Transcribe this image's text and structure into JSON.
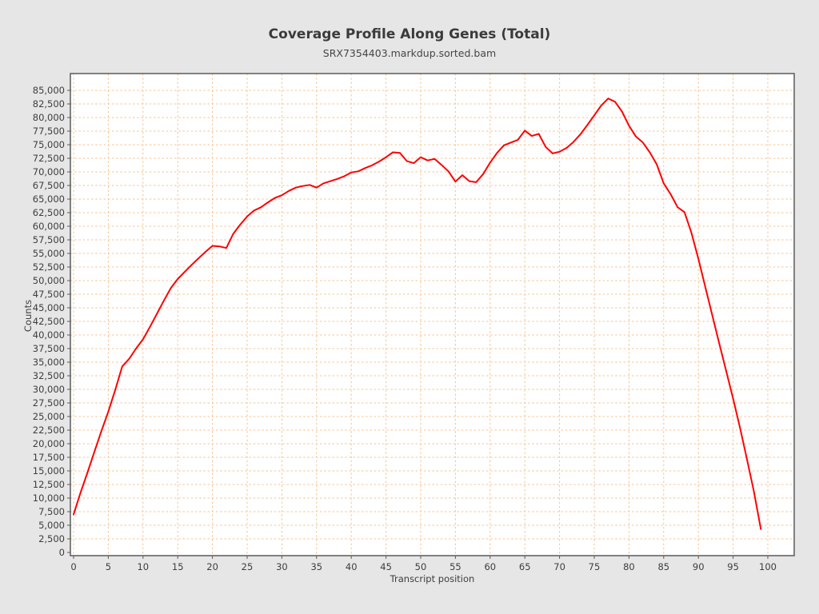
{
  "chart_data": {
    "type": "line",
    "title": "Coverage Profile Along Genes (Total)",
    "subtitle": "SRX7354403.markdup.sorted.bam",
    "xlabel": "Transcript position",
    "ylabel": "Counts",
    "xlim": [
      0,
      100
    ],
    "ylim": [
      0,
      85000
    ],
    "x_tick_step": 5,
    "y_tick_step": 2500,
    "grid": "dashed",
    "legend_position": "none",
    "style": {
      "page_bg": "#e6e6e6",
      "plot_bg": "#ffffff",
      "grid_color": "#f6c493",
      "line_color": "#ff0000",
      "border_color": "#5a5a5a",
      "text_color": "#3d3d3d"
    },
    "series": [
      {
        "name": "SRX7354403.markdup.sorted.bam",
        "x": [
          0,
          1,
          2,
          3,
          4,
          5,
          6,
          7,
          8,
          9,
          10,
          11,
          12,
          13,
          14,
          15,
          16,
          17,
          18,
          19,
          20,
          21,
          22,
          23,
          24,
          25,
          26,
          27,
          28,
          29,
          30,
          31,
          32,
          33,
          34,
          35,
          36,
          37,
          38,
          39,
          40,
          41,
          42,
          43,
          44,
          45,
          46,
          47,
          48,
          49,
          50,
          51,
          52,
          53,
          54,
          55,
          56,
          57,
          58,
          59,
          60,
          61,
          62,
          63,
          64,
          65,
          66,
          67,
          68,
          69,
          70,
          71,
          72,
          73,
          74,
          75,
          76,
          77,
          78,
          79,
          80,
          81,
          82,
          83,
          84,
          85,
          86,
          87,
          88,
          89,
          90,
          91,
          92,
          93,
          94,
          95,
          96,
          97,
          98,
          99
        ],
        "y": [
          7000,
          11000,
          14700,
          18500,
          22300,
          25900,
          29900,
          34200,
          35600,
          37500,
          39200,
          41500,
          43900,
          46300,
          48600,
          50300,
          51600,
          52900,
          54100,
          55300,
          56400,
          56300,
          56000,
          58600,
          60300,
          61800,
          62900,
          63500,
          64400,
          65200,
          65700,
          66500,
          67100,
          67400,
          67600,
          67100,
          67900,
          68300,
          68700,
          69200,
          69900,
          70100,
          70700,
          71200,
          71900,
          72700,
          73600,
          73500,
          72000,
          71600,
          72700,
          72100,
          72400,
          71300,
          70100,
          68200,
          69400,
          68300,
          68100,
          69600,
          71700,
          73500,
          74900,
          75400,
          75900,
          77600,
          76600,
          77000,
          74600,
          73400,
          73700,
          74400,
          75500,
          76900,
          78600,
          80400,
          82200,
          83500,
          82900,
          81100,
          78500,
          76500,
          75400,
          73600,
          71400,
          67900,
          65900,
          63500,
          62600,
          58800,
          54000,
          48800,
          43600,
          38500,
          33400,
          28300,
          22900,
          17100,
          11200,
          4300
        ]
      }
    ]
  }
}
